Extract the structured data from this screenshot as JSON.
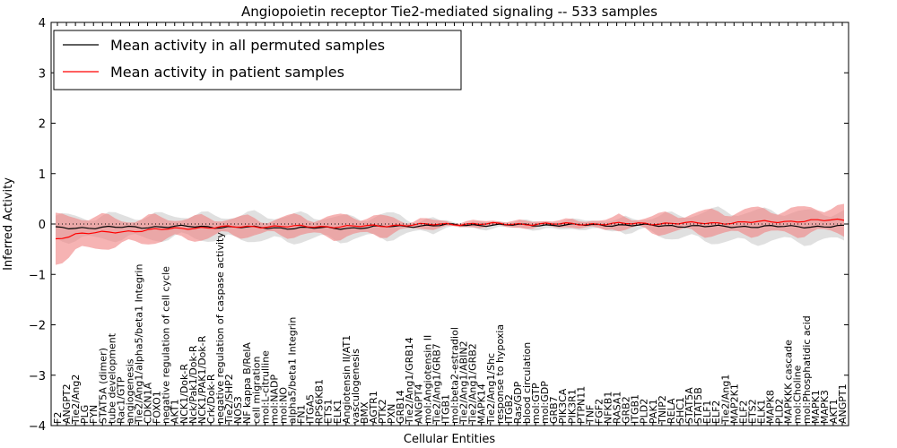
{
  "chart_data": {
    "type": "line",
    "title": "Angiopoietin receptor Tie2-mediated signaling -- 533 samples",
    "xlabel": "Cellular Entities",
    "ylabel": "Inferred Activity",
    "ylim": [
      -4,
      4
    ],
    "yticks": [
      -4,
      -3,
      -2,
      -1,
      0,
      1,
      2,
      3,
      4
    ],
    "legend_position": "top-left",
    "series": [
      {
        "name": "Mean activity in all permuted samples",
        "color": "#000000",
        "band_color": "#bbbbbb",
        "anchors": [
          [
            0,
            -0.08,
            0.22
          ],
          [
            20,
            -0.05,
            0.22
          ],
          [
            35,
            -0.08,
            0.25
          ],
          [
            45,
            -0.08,
            0.2
          ],
          [
            50,
            -0.05,
            0.22
          ],
          [
            60,
            -0.02,
            0.05
          ],
          [
            85,
            -0.02,
            0.1
          ],
          [
            100,
            -0.05,
            0.3
          ],
          [
            119,
            -0.05,
            0.28
          ]
        ]
      },
      {
        "name": "Mean activity in patient samples",
        "color": "#ff0000",
        "band_color": "#f08080",
        "anchors": [
          [
            0,
            -0.3,
            0.45
          ],
          [
            3,
            -0.2,
            0.35
          ],
          [
            10,
            -0.15,
            0.25
          ],
          [
            20,
            -0.08,
            0.2
          ],
          [
            30,
            -0.05,
            0.15
          ],
          [
            45,
            -0.05,
            0.2
          ],
          [
            50,
            -0.03,
            0.15
          ],
          [
            60,
            0.0,
            0.05
          ],
          [
            80,
            0.0,
            0.07
          ],
          [
            100,
            0.02,
            0.22
          ],
          [
            119,
            0.08,
            0.25
          ]
        ]
      }
    ],
    "categories": [
      "F2",
      "ANGPT2",
      "Tie2/Ang2",
      "PLG",
      "FYN",
      "STAT5A (dimer)",
      "tube development",
      "Rac1/GTP",
      "angiogenesis",
      "Tie2/Ang1/alpha5/beta1 Integrin",
      "CDKN1A",
      "FOXO1",
      "negative regulation of cell cycle",
      "AKT1",
      "NCK1/Dok-R",
      "Nck/Pak1/Dok-R",
      "NCK1/PAK1/Dok-R",
      "Crk/Dok-R",
      "negative regulation of caspase activity",
      "Tie2/SHP2",
      "NOS3",
      "NF kappa B/RelA",
      "cell migration",
      "mol:L-citrulline",
      "mol:NADP",
      "mol:NO",
      "alpha5/beta1 Integrin",
      "FN1",
      "ITGA5",
      "RPS6KB1",
      "ETS1",
      "ELK1",
      "Angiotensin II/AT1",
      "vasculogenesis",
      "BMX",
      "AGTR1",
      "PTK2",
      "PXN",
      "GRB14",
      "Tie2/Ang1/GRB14",
      "ANGPT4",
      "mol:Angiotensin II",
      "Tie2/Ang1/GRB7",
      "ITGB1",
      "mol:beta2-estradiol",
      "Tie2/Ang1/ABIN2",
      "Tie2/Ang1/GRB2",
      "MAPK14",
      "Tie2/Ang1/Shc",
      "response to hypoxia",
      "ITGB2",
      "Ras/GDP",
      "blood circulation",
      "mol:GTP",
      "mol:GDP",
      "GRB7",
      "PIK3CA",
      "PIK3R1",
      "PTPN11",
      "TNF",
      "FGF2",
      "NFKB1",
      "RASA1",
      "GRB2",
      "ITGB1",
      "PLD2",
      "PAK1",
      "TNIP2",
      "RELA",
      "SHC1",
      "STAT5A",
      "STAT5B",
      "ELF1",
      "ELF2",
      "Tie2/Ang1",
      "MAP2K1",
      "ELF2",
      "ETS2",
      "ELK1",
      "MAPK8",
      "PLD2",
      "MAPKKK cascade",
      "mol:Choline",
      "mol:Phosphatidic acid",
      "MAPK1",
      "MAPK3",
      "AKT1",
      "ANGPT1"
    ]
  },
  "legend": {
    "items": [
      {
        "label": "Mean activity in all permuted samples",
        "color": "#000000"
      },
      {
        "label": "Mean activity in patient samples",
        "color": "#ff0000"
      }
    ]
  }
}
